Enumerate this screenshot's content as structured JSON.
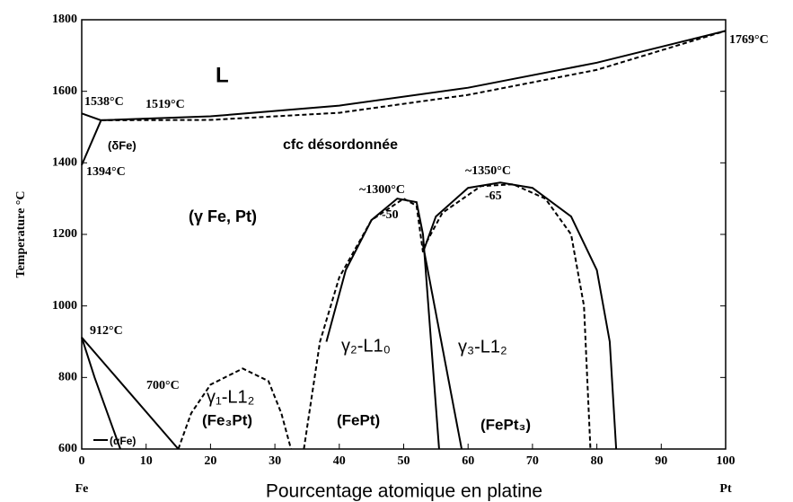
{
  "chart_data": {
    "type": "line",
    "x_label": "Pourcentage atomique en platine",
    "y_label": "Temperature °C",
    "xlim": [
      0,
      100
    ],
    "xticks": [
      0,
      10,
      20,
      30,
      40,
      50,
      60,
      70,
      80,
      90,
      100
    ],
    "ylim": [
      600,
      1800
    ],
    "yticks": [
      600,
      800,
      1000,
      1200,
      1400,
      1600,
      1800
    ],
    "x_end_labels": [
      "Fe",
      "Pt"
    ],
    "color": "#000000",
    "curves": [
      {
        "x": [
          0,
          3,
          20,
          40,
          60,
          80,
          100
        ],
        "y": [
          1538,
          1519,
          1530,
          1560,
          1610,
          1680,
          1769
        ],
        "dashed": false
      },
      {
        "x": [
          3,
          20,
          40,
          60,
          80,
          100
        ],
        "y": [
          1519,
          1520,
          1540,
          1590,
          1660,
          1769
        ],
        "dashed": true
      },
      {
        "x": [
          0,
          3
        ],
        "y": [
          1394,
          1519
        ],
        "dashed": false
      },
      {
        "x": [
          0,
          15
        ],
        "y": [
          912,
          600
        ],
        "dashed": false
      },
      {
        "x": [
          0,
          2,
          4,
          6
        ],
        "y": [
          912,
          800,
          700,
          600
        ],
        "dashed": false
      },
      {
        "x": [
          15,
          17,
          20,
          25,
          29,
          31,
          32.5
        ],
        "y": [
          600,
          700,
          780,
          825,
          790,
          700,
          600
        ],
        "dashed": true
      },
      {
        "x": [
          34.5,
          37,
          40,
          45,
          50,
          52,
          53
        ],
        "y": [
          600,
          900,
          1080,
          1240,
          1300,
          1280,
          1150
        ],
        "dashed": true
      },
      {
        "x": [
          38,
          41,
          45,
          49,
          52,
          53,
          55.5
        ],
        "y": [
          900,
          1100,
          1240,
          1300,
          1290,
          1200,
          600
        ],
        "dashed": false
      },
      {
        "x": [
          53,
          59
        ],
        "y": [
          1170,
          600
        ],
        "dashed": false
      },
      {
        "x": [
          53,
          55,
          60,
          65,
          70,
          76,
          80,
          82,
          83
        ],
        "y": [
          1150,
          1250,
          1330,
          1345,
          1330,
          1250,
          1100,
          900,
          600
        ],
        "dashed": false
      },
      {
        "x": [
          53,
          56,
          62,
          67,
          72,
          76,
          78,
          79
        ],
        "y": [
          1160,
          1260,
          1335,
          1340,
          1300,
          1200,
          1000,
          600
        ],
        "dashed": true
      }
    ],
    "annotations": [
      "L",
      "1538°C",
      "1519°C",
      "(δFe)",
      "1394°C",
      "cfc désordonnée",
      "1769°C",
      "~1300°C",
      "-50",
      "~1350°C",
      "-65",
      "(γ Fe, Pt)",
      "912°C",
      "700°C",
      "γ₁-L1₂",
      "(Fe₃Pt)",
      "γ₂-L1₀",
      "(FePt)",
      "γ₃-L1₂",
      "(FePt₃)",
      "(αFe)"
    ]
  }
}
